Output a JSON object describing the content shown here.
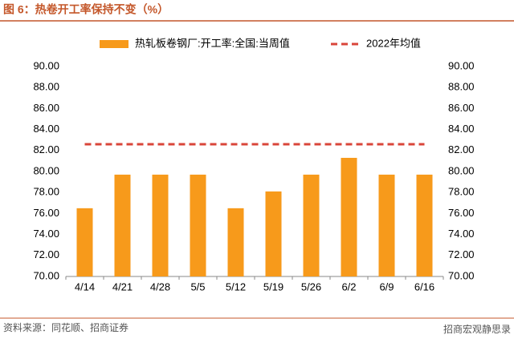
{
  "chart_data": {
    "type": "bar",
    "title": "图 6：热卷开工率保持不变（%）",
    "source": "资料来源：同花顺、招商证券",
    "watermark": "招商宏观静思录",
    "categories": [
      "4/14",
      "4/21",
      "4/28",
      "5/5",
      "5/12",
      "5/19",
      "5/26",
      "6/2",
      "6/9",
      "6/16"
    ],
    "series": [
      {
        "name": "热轧板卷钢厂:开工率:全国:当周值",
        "type": "bar",
        "color": "#f79a1b",
        "values": [
          76.5,
          79.7,
          79.7,
          79.7,
          76.5,
          78.1,
          79.7,
          81.3,
          79.7,
          79.7
        ]
      },
      {
        "name": "2022年均值",
        "type": "line",
        "dashed": true,
        "color": "#d9453a",
        "values": [
          82.6,
          82.6,
          82.6,
          82.6,
          82.6,
          82.6,
          82.6,
          82.6,
          82.6,
          82.6
        ]
      }
    ],
    "ylim": [
      70,
      90
    ],
    "yticks": [
      {
        "value": 70,
        "label": "70.00"
      },
      {
        "value": 72,
        "label": "72.00"
      },
      {
        "value": 74,
        "label": "74.00"
      },
      {
        "value": 76,
        "label": "76.00"
      },
      {
        "value": 78,
        "label": "78.00"
      },
      {
        "value": 80,
        "label": "80.00"
      },
      {
        "value": 82,
        "label": "82.00"
      },
      {
        "value": 84,
        "label": "84.00"
      },
      {
        "value": 86,
        "label": "86.00"
      },
      {
        "value": 88,
        "label": "88.00"
      },
      {
        "value": 90,
        "label": "90.00"
      }
    ],
    "y2lim": [
      70,
      90
    ],
    "y2ticks": [
      {
        "value": 70,
        "label": "70.00"
      },
      {
        "value": 72,
        "label": "72.00"
      },
      {
        "value": 74,
        "label": "74.00"
      },
      {
        "value": 76,
        "label": "76.00"
      },
      {
        "value": 78,
        "label": "78.00"
      },
      {
        "value": 80,
        "label": "80.00"
      },
      {
        "value": 82,
        "label": "82.00"
      },
      {
        "value": 84,
        "label": "84.00"
      },
      {
        "value": 86,
        "label": "86.00"
      },
      {
        "value": 88,
        "label": "88.00"
      },
      {
        "value": 90,
        "label": "90.00"
      }
    ],
    "grid": false,
    "legend": "top"
  }
}
